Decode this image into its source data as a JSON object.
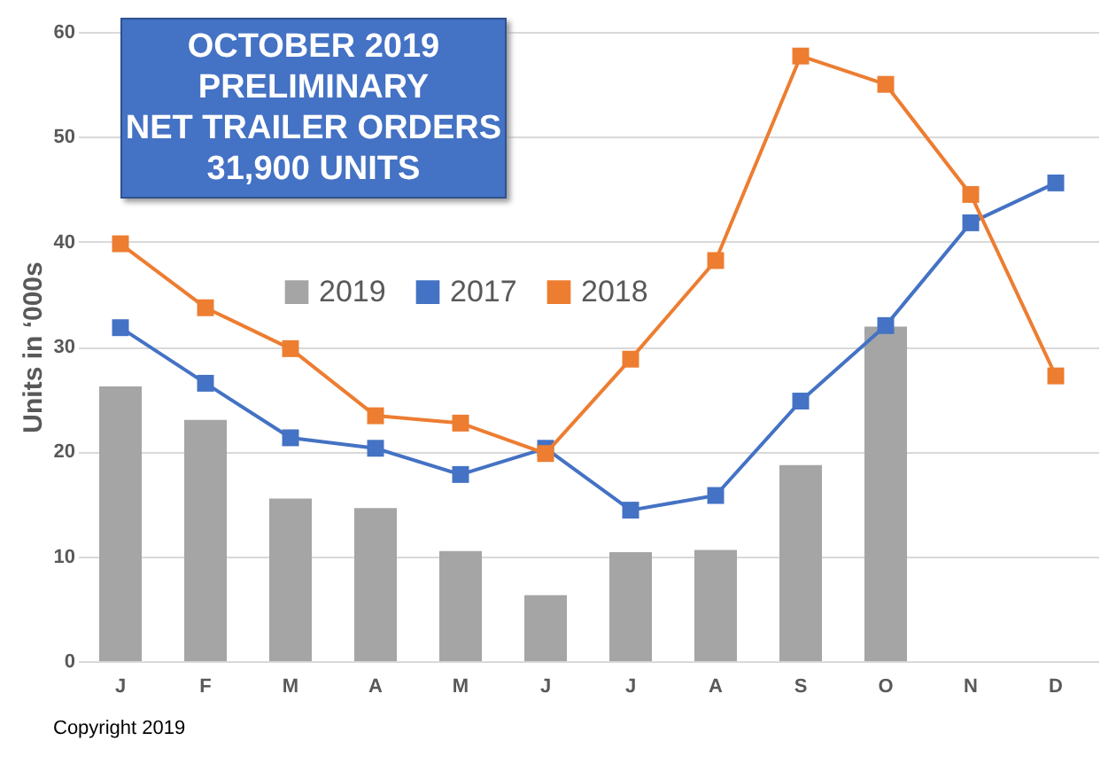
{
  "chart_data": {
    "type": "bar",
    "title": "OCTOBER 2019\nPRELIMINARY\nNET TRAILER ORDERS\n31,900 UNITS",
    "ylabel": "Units in ‘000s",
    "categories": [
      "J",
      "F",
      "M",
      "A",
      "M",
      "J",
      "J",
      "A",
      "S",
      "O",
      "N",
      "D"
    ],
    "series": [
      {
        "name": "2019",
        "color": "#a5a5a5",
        "values": [
          26.2,
          23,
          15.5,
          14.6,
          10.5,
          6.3,
          10.4,
          10.6,
          18.7,
          31.9,
          null,
          null
        ]
      },
      {
        "name": "2017",
        "type": "line",
        "color": "#4472c4",
        "values": [
          31.8,
          26.5,
          21.3,
          20.3,
          17.8,
          20.3,
          14.4,
          15.8,
          24.8,
          32,
          41.8,
          45.6
        ]
      },
      {
        "name": "2018",
        "type": "line",
        "color": "#ed7d31",
        "values": [
          39.8,
          33.7,
          29.8,
          23.4,
          22.7,
          19.8,
          28.8,
          38.2,
          57.7,
          55,
          44.5,
          27.2
        ]
      }
    ],
    "ylim": [
      0,
      60
    ],
    "yticks": [
      0,
      10,
      20,
      30,
      40,
      50,
      60
    ],
    "grid": "y",
    "legend": "top",
    "marker": "square",
    "annotations": [
      "Copyright 2019"
    ]
  }
}
